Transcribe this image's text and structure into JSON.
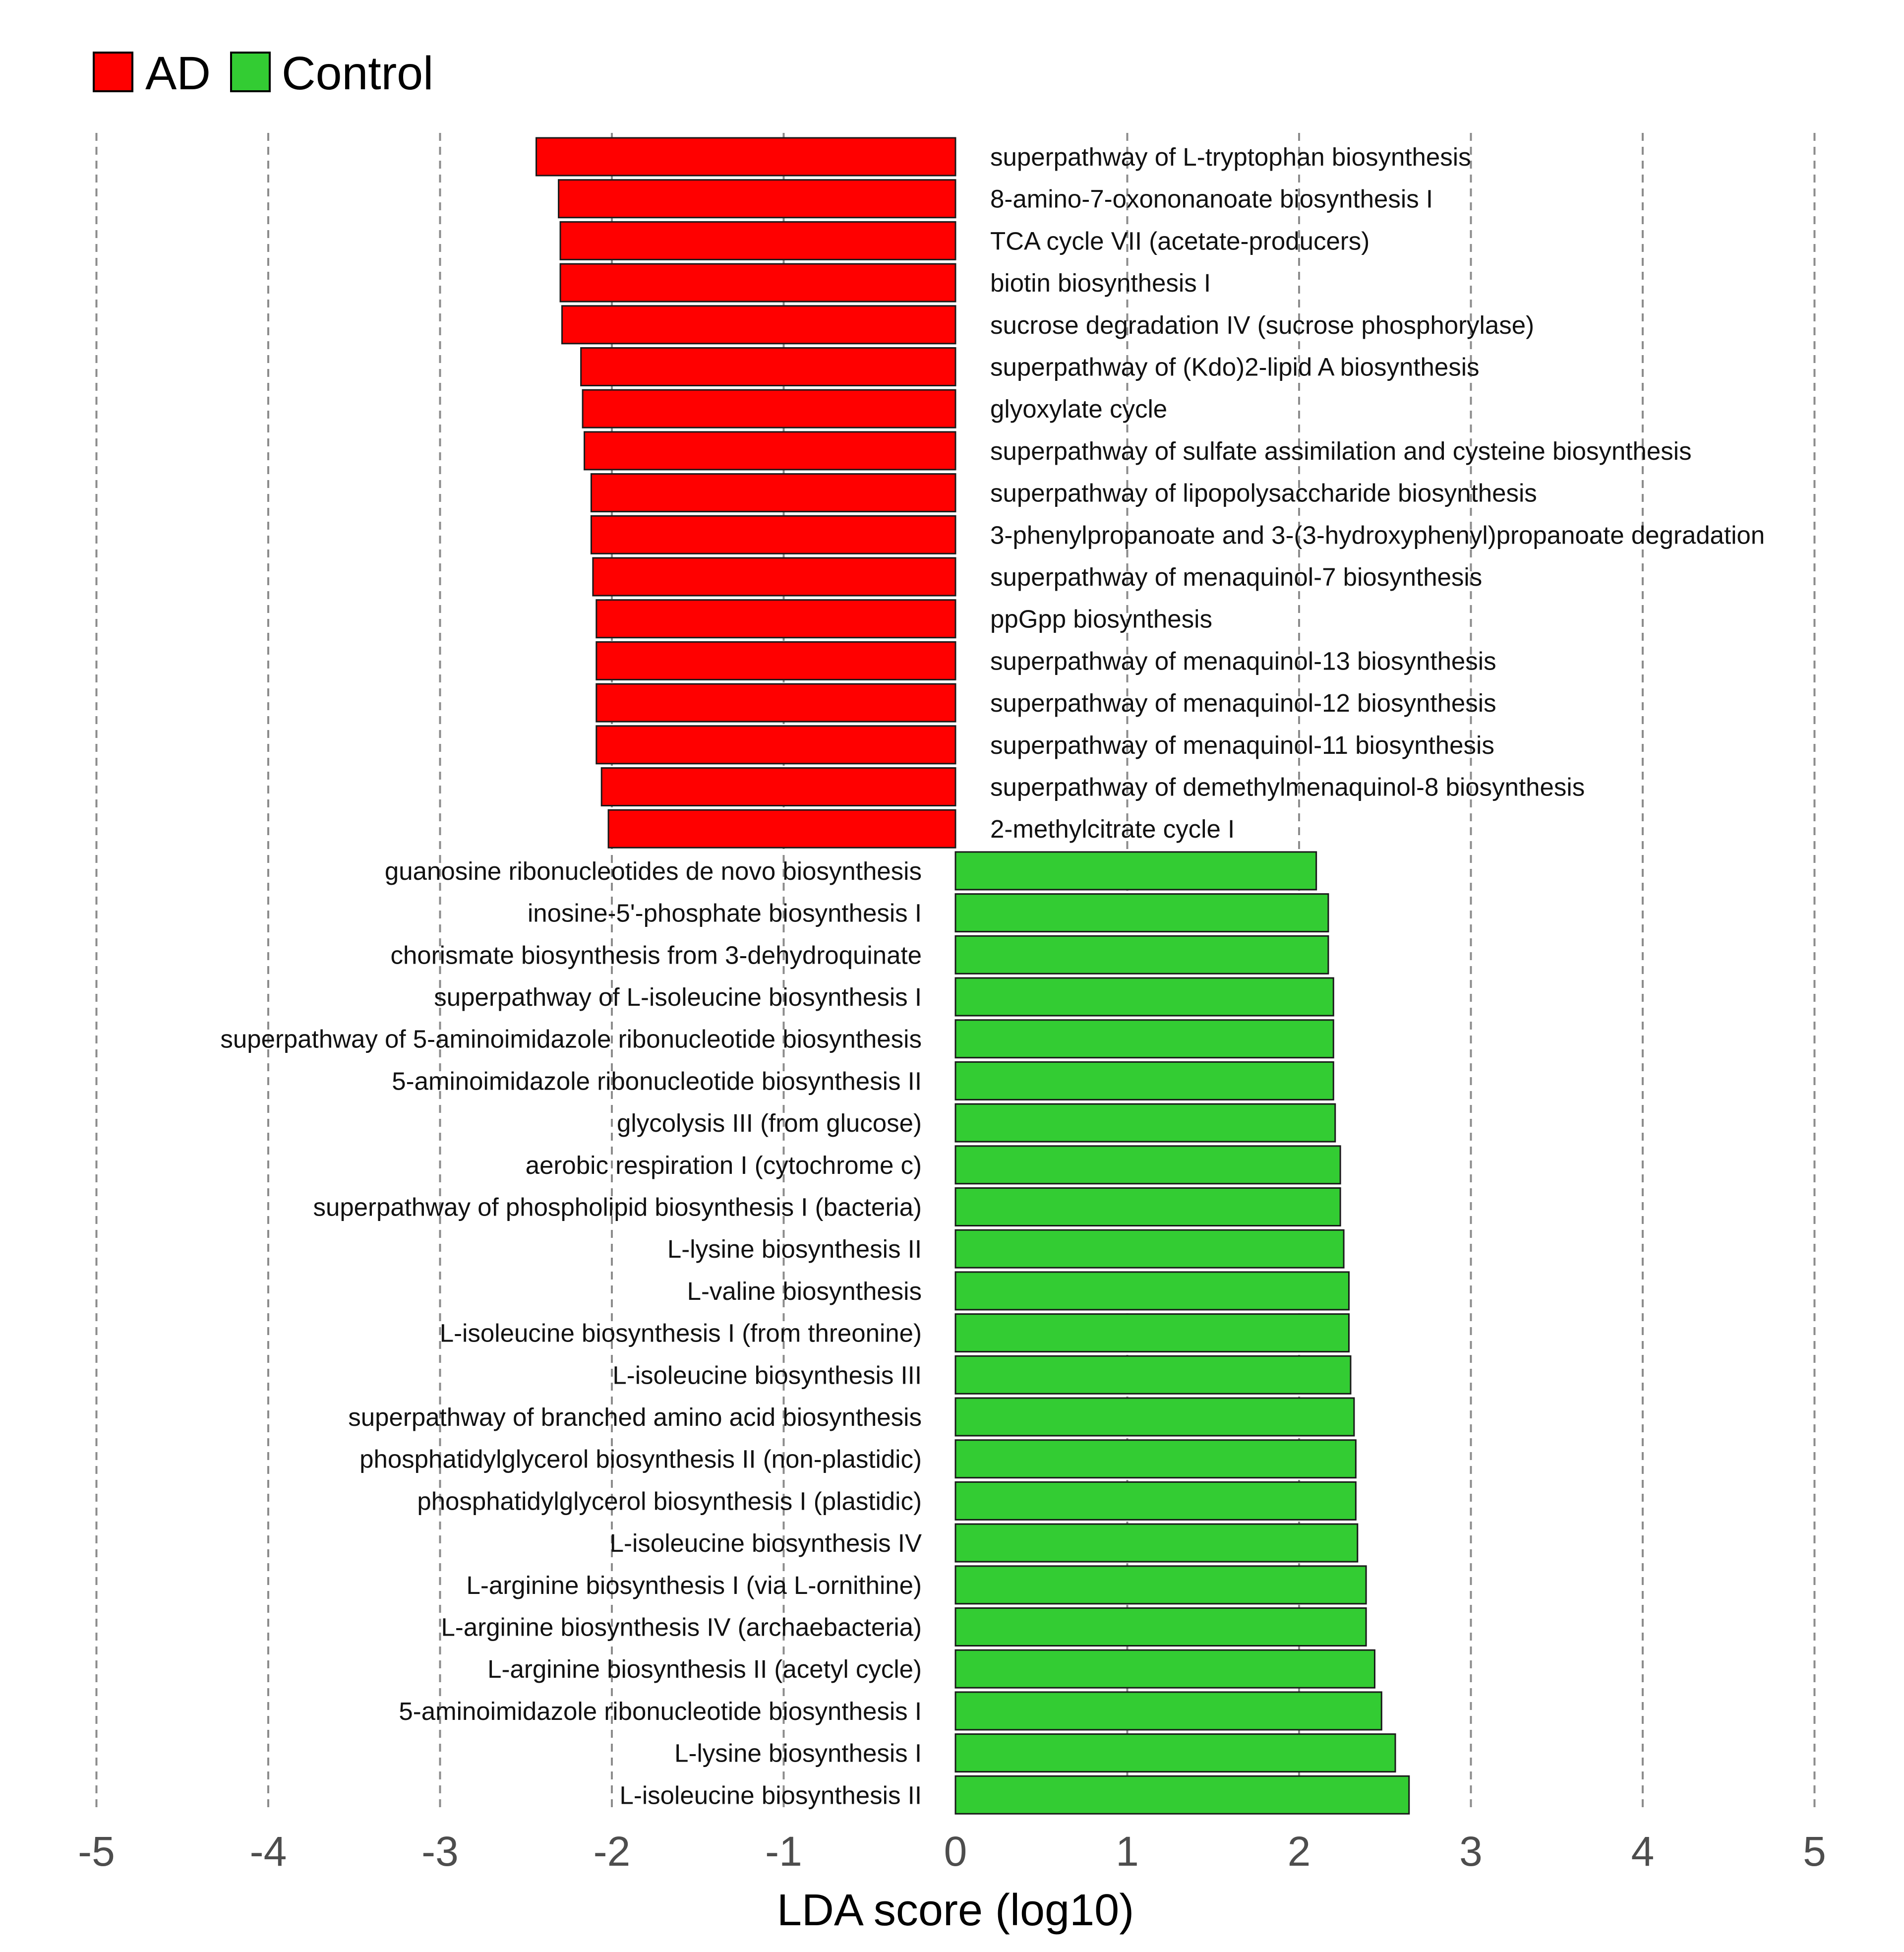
{
  "chart_data": {
    "type": "bar",
    "orientation": "horizontal",
    "xlabel": "LDA score (log10)",
    "xlim": [
      -5,
      5
    ],
    "xticks": [
      "-5",
      "-4",
      "-3",
      "-2",
      "-1",
      "0",
      "1",
      "2",
      "3",
      "4",
      "5"
    ],
    "grid": "vertical dashed",
    "legend": {
      "position": "top-left",
      "entries": [
        {
          "name": "AD",
          "color": "#ff0000"
        },
        {
          "name": "Control",
          "color": "#33cc33"
        }
      ]
    },
    "series": [
      {
        "name": "AD",
        "color": "#ff0000",
        "items": [
          {
            "label": "superpathway of L-tryptophan biosynthesis",
            "value": -2.44
          },
          {
            "label": "8-amino-7-oxononanoate biosynthesis I",
            "value": -2.31
          },
          {
            "label": "TCA cycle VII (acetate-producers)",
            "value": -2.3
          },
          {
            "label": "biotin biosynthesis I",
            "value": -2.3
          },
          {
            "label": "sucrose degradation IV (sucrose phosphorylase)",
            "value": -2.29
          },
          {
            "label": "superpathway of (Kdo)2-lipid A biosynthesis",
            "value": -2.18
          },
          {
            "label": "glyoxylate cycle",
            "value": -2.17
          },
          {
            "label": "superpathway of sulfate assimilation and cysteine biosynthesis",
            "value": -2.16
          },
          {
            "label": "superpathway of lipopolysaccharide biosynthesis",
            "value": -2.12
          },
          {
            "label": "3-phenylpropanoate and 3-(3-hydroxyphenyl)propanoate degradation",
            "value": -2.12
          },
          {
            "label": "superpathway of menaquinol-7 biosynthesis",
            "value": -2.11
          },
          {
            "label": "ppGpp biosynthesis",
            "value": -2.09
          },
          {
            "label": "superpathway of menaquinol-13 biosynthesis",
            "value": -2.09
          },
          {
            "label": "superpathway of menaquinol-12 biosynthesis",
            "value": -2.09
          },
          {
            "label": "superpathway of menaquinol-11 biosynthesis",
            "value": -2.09
          },
          {
            "label": "superpathway of demethylmenaquinol-8 biosynthesis",
            "value": -2.06
          },
          {
            "label": "2-methylcitrate cycle I",
            "value": -2.02
          }
        ]
      },
      {
        "name": "Control",
        "color": "#33cc33",
        "items": [
          {
            "label": "guanosine ribonucleotides de novo biosynthesis",
            "value": 2.1
          },
          {
            "label": "inosine-5'-phosphate biosynthesis I",
            "value": 2.17
          },
          {
            "label": "chorismate biosynthesis from 3-dehydroquinate",
            "value": 2.17
          },
          {
            "label": "superpathway of L-isoleucine biosynthesis I",
            "value": 2.2
          },
          {
            "label": "superpathway of 5-aminoimidazole ribonucleotide biosynthesis",
            "value": 2.2
          },
          {
            "label": "5-aminoimidazole ribonucleotide biosynthesis II",
            "value": 2.2
          },
          {
            "label": "glycolysis III (from glucose)",
            "value": 2.21
          },
          {
            "label": "aerobic respiration I (cytochrome c)",
            "value": 2.24
          },
          {
            "label": "superpathway of phospholipid biosynthesis I (bacteria)",
            "value": 2.24
          },
          {
            "label": "L-lysine biosynthesis II",
            "value": 2.26
          },
          {
            "label": "L-valine biosynthesis",
            "value": 2.29
          },
          {
            "label": "L-isoleucine biosynthesis I (from threonine)",
            "value": 2.29
          },
          {
            "label": "L-isoleucine biosynthesis III",
            "value": 2.3
          },
          {
            "label": "superpathway of branched amino acid biosynthesis",
            "value": 2.32
          },
          {
            "label": "phosphatidylglycerol biosynthesis II (non-plastidic)",
            "value": 2.33
          },
          {
            "label": "phosphatidylglycerol biosynthesis I (plastidic)",
            "value": 2.33
          },
          {
            "label": "L-isoleucine biosynthesis IV",
            "value": 2.34
          },
          {
            "label": "L-arginine biosynthesis I (via L-ornithine)",
            "value": 2.39
          },
          {
            "label": "L-arginine biosynthesis IV (archaebacteria)",
            "value": 2.39
          },
          {
            "label": "L-arginine biosynthesis II (acetyl cycle)",
            "value": 2.44
          },
          {
            "label": "5-aminoimidazole ribonucleotide biosynthesis I",
            "value": 2.48
          },
          {
            "label": "L-lysine biosynthesis I",
            "value": 2.56
          },
          {
            "label": "L-isoleucine biosynthesis II",
            "value": 2.64
          }
        ]
      }
    ]
  }
}
